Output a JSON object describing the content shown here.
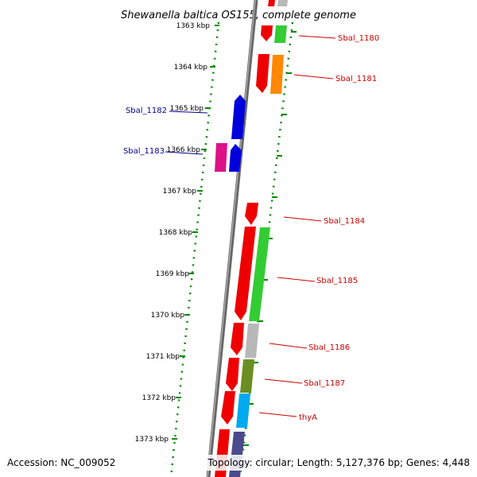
{
  "title": "Shewanella baltica OS155, complete genome",
  "footer": {
    "accession": "Accession: NC_009052",
    "topology": "Topology: circular; Length: 5,127,376 bp; Genes: 4,448"
  },
  "colors": {
    "red": "#ee0000",
    "blue": "#0000dd",
    "green": "#33cc33",
    "orange": "#ff8800",
    "magenta": "#dd1188",
    "gray": "#b8b8b8",
    "olive": "#6b8e23",
    "cyan": "#00aaee",
    "slate": "#4a4a8c",
    "axis_green": "#008800",
    "backbone": "#777777",
    "label_red": "#cc0000",
    "label_blue": "#00008b"
  },
  "ruler": {
    "ticks": [
      "1363 kbp",
      "1364 kbp",
      "1365 kbp",
      "1366 kbp",
      "1367 kbp",
      "1368 kbp",
      "1369 kbp",
      "1370 kbp",
      "1371 kbp",
      "1372 kbp",
      "1373 kbp"
    ]
  },
  "genes": [
    {
      "label": "Sbal_1180",
      "strand": "+",
      "color": "red"
    },
    {
      "label": "Sbal_1181",
      "strand": "+",
      "color": "red"
    },
    {
      "label": "Sbal_1182",
      "strand": "-",
      "color": "blue"
    },
    {
      "label": "Sbal_1183",
      "strand": "-",
      "color": "blue"
    },
    {
      "label": "Sbal_1184",
      "strand": "+",
      "color": "red"
    },
    {
      "label": "Sbal_1185",
      "strand": "+",
      "color": "red"
    },
    {
      "label": "Sbal_1186",
      "strand": "+",
      "color": "red"
    },
    {
      "label": "Sbal_1187",
      "strand": "+",
      "color": "red"
    },
    {
      "label": "thyA",
      "strand": "+",
      "color": "red"
    }
  ]
}
